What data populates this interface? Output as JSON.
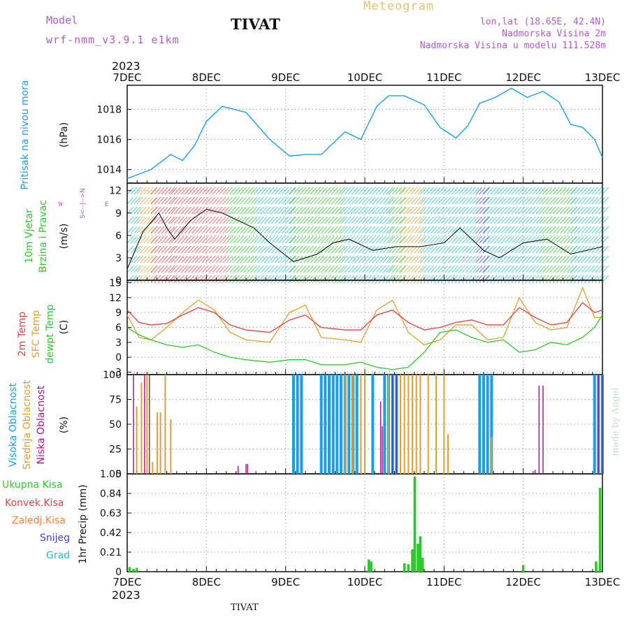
{
  "header": {
    "model_label": "Model",
    "model_name": "wrf-nmm_v3.9.1  e1km",
    "city": "TIVAT",
    "meteogram": "Meteogram",
    "lonlat": "lon,lat (18.65E, 42.4N)",
    "elevation": "Nadmorska Visina 2m",
    "model_elevation": "Nadmorska Visina u modelu 111.528m"
  },
  "footer": {
    "city": "TIVAT",
    "credit": "made by Angel"
  },
  "colors": {
    "pressure": "#1a9ee6",
    "temp2m": "#e84040",
    "sfc": "#e0a030",
    "dewpt": "#2ec82e",
    "cloud_high": "#1a9ee6",
    "cloud_mid": "#e0a030",
    "cloud_low": "#b0148c",
    "precip": "#2ec82e",
    "wind_violet": "#b05ad0"
  },
  "time_axis": {
    "year": "2023",
    "labels": [
      "7DEC",
      "8DEC",
      "9DEC",
      "10DEC",
      "11DEC",
      "12DEC",
      "13DEC"
    ]
  },
  "panel_labels": {
    "pressure": {
      "name": "Pritisak na nivou mora",
      "unit": "(hPa)"
    },
    "wind": {
      "name1": "10m Vjetar",
      "name2": "Brzina i Pravac",
      "unit": "(m/s)",
      "compass_w": "W",
      "compass_e": "E",
      "compass_ns": "S<--|-->N"
    },
    "temp": {
      "name1": "2m Temp",
      "name2": "SFC Temp",
      "name3": "dewpt Temp",
      "unit": "(C)"
    },
    "cloud": {
      "name1": "Visoka Oblacnost",
      "name2": "Srednja Oblacnost",
      "name3": "Niska Oblacnost",
      "unit": "(%)"
    },
    "precip": {
      "unit": "1hr Precip (mm)",
      "legend": [
        "Ukupna Kisa",
        "Konvek.Kisa",
        "Zaledj.Kisa",
        "Snijeg",
        "Grad"
      ]
    }
  },
  "chart_data": [
    {
      "type": "line",
      "title": "",
      "ylabel": "Pritisak na nivou mora (hPa)",
      "ylim": [
        1013.1,
        1019.6
      ],
      "yticks": [
        "1014",
        "1016",
        "1018"
      ],
      "x": [
        0,
        0.3,
        0.55,
        0.7,
        0.85,
        1.0,
        1.2,
        1.5,
        1.8,
        2.05,
        2.25,
        2.45,
        2.75,
        2.95,
        3.15,
        3.3,
        3.5,
        3.75,
        3.95,
        4.15,
        4.3,
        4.45,
        4.65,
        4.85,
        5.05,
        5.25,
        5.45,
        5.6,
        5.75,
        5.9,
        6.0
      ],
      "series": [
        {
          "values": [
            1013.4,
            1014.0,
            1015.0,
            1014.6,
            1015.6,
            1017.2,
            1018.2,
            1017.8,
            1016.0,
            1014.9,
            1015.0,
            1015.0,
            1016.5,
            1016.0,
            1018.2,
            1018.9,
            1018.9,
            1018.3,
            1016.8,
            1016.1,
            1016.9,
            1018.4,
            1018.8,
            1019.4,
            1018.8,
            1019.2,
            1018.5,
            1017.0,
            1016.8,
            1016.0,
            1014.8
          ]
        }
      ],
      "grid": true
    },
    {
      "type": "line",
      "title": "",
      "ylabel": "10m Vjetar Brzina i Pravac (m/s)",
      "ylim": [
        0,
        13
      ],
      "yticks": [
        "0",
        "3",
        "6",
        "9",
        "12"
      ],
      "x": [
        0,
        0.2,
        0.4,
        0.5,
        0.6,
        0.8,
        1.0,
        1.2,
        1.4,
        1.6,
        1.8,
        2.1,
        2.4,
        2.6,
        2.8,
        3.1,
        3.4,
        3.7,
        4.0,
        4.2,
        4.5,
        4.7,
        5.0,
        5.3,
        5.6,
        5.8,
        6.0
      ],
      "series": [
        {
          "values": [
            1.5,
            6.5,
            9.0,
            7.0,
            5.5,
            8.0,
            9.5,
            9.0,
            8.0,
            7.0,
            5.0,
            2.5,
            3.5,
            5.0,
            5.5,
            4.0,
            4.5,
            4.5,
            5.0,
            7.0,
            4.0,
            3.0,
            5.0,
            5.5,
            3.5,
            4.0,
            4.5
          ]
        }
      ],
      "grid": true
    },
    {
      "type": "line",
      "title": "",
      "ylabel": "2m Temp / SFC Temp / dewpt Temp (C)",
      "ylim": [
        -3.5,
        15.5
      ],
      "yticks": [
        "-3",
        "0",
        "3",
        "6",
        "9",
        "12",
        "15"
      ],
      "x": [
        0,
        0.15,
        0.3,
        0.5,
        0.7,
        0.9,
        1.1,
        1.3,
        1.5,
        1.8,
        2.05,
        2.25,
        2.45,
        2.75,
        2.95,
        3.15,
        3.35,
        3.55,
        3.75,
        3.95,
        4.15,
        4.35,
        4.55,
        4.75,
        4.95,
        5.15,
        5.35,
        5.55,
        5.75,
        5.9,
        6.0
      ],
      "series": [
        {
          "name": "2m Temp",
          "values": [
            9.5,
            7.0,
            6.5,
            6.8,
            8.5,
            10.0,
            9.0,
            6.5,
            5.5,
            5.0,
            7.5,
            8.5,
            6.0,
            5.5,
            5.5,
            8.5,
            9.5,
            7.0,
            5.5,
            6.0,
            7.0,
            7.5,
            6.5,
            6.5,
            10.0,
            8.0,
            6.5,
            7.0,
            11.0,
            9.0,
            9.5
          ]
        },
        {
          "name": "SFC Temp",
          "values": [
            8.5,
            4.0,
            3.5,
            6.0,
            9.0,
            11.5,
            9.5,
            5.0,
            3.5,
            3.0,
            9.0,
            10.5,
            4.0,
            3.5,
            3.0,
            9.5,
            11.5,
            5.0,
            2.5,
            3.5,
            6.5,
            6.5,
            3.5,
            4.0,
            12.0,
            7.0,
            5.5,
            6.0,
            14.0,
            8.0,
            8.0
          ]
        },
        {
          "name": "dewpt Temp",
          "values": [
            6.0,
            4.5,
            3.5,
            2.5,
            2.0,
            2.5,
            1.0,
            0.0,
            -0.5,
            -1.0,
            -0.5,
            -0.5,
            -1.5,
            -1.5,
            -1.0,
            -2.0,
            -2.5,
            -2.0,
            1.0,
            5.0,
            5.5,
            4.0,
            3.0,
            3.5,
            1.0,
            1.5,
            3.0,
            2.5,
            4.0,
            6.0,
            8.5
          ]
        }
      ],
      "grid": true
    },
    {
      "type": "bar",
      "title": "",
      "ylabel": "Oblacnost (%)",
      "ylim": [
        0,
        100
      ],
      "yticks": [
        "0",
        "25",
        "50",
        "75",
        "100"
      ],
      "series": [
        {
          "name": "Visoka Oblacnost",
          "x": [
            2.1,
            2.15,
            2.2,
            2.45,
            2.5,
            2.55,
            2.6,
            2.65,
            2.7,
            2.75,
            2.8,
            2.85,
            2.9,
            3.1,
            3.25,
            3.3,
            3.35,
            3.4,
            4.45,
            4.5,
            4.55,
            4.6,
            5.9,
            5.95,
            6.0
          ],
          "values": [
            100,
            100,
            100,
            100,
            100,
            100,
            100,
            100,
            100,
            100,
            100,
            100,
            100,
            100,
            100,
            100,
            100,
            100,
            100,
            100,
            100,
            100,
            100,
            100,
            100
          ]
        },
        {
          "name": "Srednja Oblacnost",
          "x": [
            0.12,
            0.18,
            0.25,
            0.32,
            0.38,
            0.42,
            0.48,
            0.55,
            2.75,
            2.85,
            2.95,
            3.0,
            3.3,
            3.45,
            3.5,
            3.55,
            3.6,
            3.65,
            3.7,
            3.8,
            3.9,
            4.0,
            4.05,
            4.6
          ],
          "values": [
            68,
            92,
            100,
            12,
            62,
            62,
            100,
            55,
            100,
            100,
            100,
            100,
            100,
            100,
            100,
            100,
            100,
            100,
            100,
            100,
            100,
            100,
            40,
            37
          ]
        },
        {
          "name": "Niska Oblacnost",
          "x": [
            0.08,
            0.22,
            0.28,
            1.4,
            1.5,
            1.52,
            3.2,
            3.22,
            3.35,
            3.4,
            5.15,
            5.2,
            5.25,
            5.95,
            6.0
          ],
          "values": [
            100,
            100,
            100,
            8,
            10,
            10,
            73,
            48,
            100,
            100,
            4,
            89,
            89,
            100,
            100
          ]
        }
      ],
      "grid": true
    },
    {
      "type": "bar",
      "title": "",
      "ylabel": "1hr Precip (mm)",
      "ylim": [
        0,
        1.05
      ],
      "yticks": [
        "0",
        "0.21",
        "0.42",
        "0.63",
        "0.84",
        "1.05"
      ],
      "series": [
        {
          "name": "Ukupna Kisa",
          "x": [
            0.03,
            0.08,
            0.12,
            3.05,
            3.08,
            3.5,
            3.55,
            3.6,
            3.63,
            3.67,
            3.7,
            3.73,
            5.0,
            5.92,
            5.97
          ],
          "values": [
            0.05,
            0.03,
            0.04,
            0.13,
            0.11,
            0.09,
            0.08,
            0.24,
            1.02,
            0.3,
            0.38,
            0.15,
            0.07,
            0.11,
            0.9
          ]
        }
      ],
      "grid": true
    }
  ]
}
